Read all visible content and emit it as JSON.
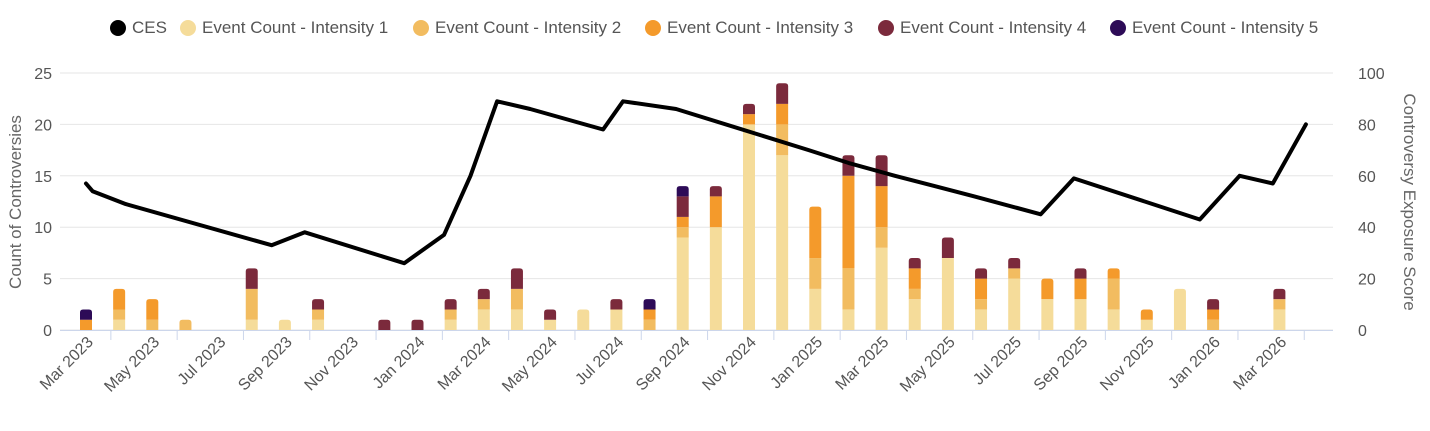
{
  "chart_data": {
    "type": "bar",
    "title": "",
    "stacked": true,
    "legend": [
      "CES",
      "Event Count - Intensity 1",
      "Event Count - Intensity 2",
      "Event Count - Intensity 3",
      "Event Count - Intensity 4",
      "Event Count - Intensity 5"
    ],
    "colors": {
      "CES": "#000000",
      "Event Count - Intensity 1": "#f5dc9a",
      "Event Count - Intensity 2": "#f2bc60",
      "Event Count - Intensity 3": "#f49a2b",
      "Event Count - Intensity 4": "#7b2a3c",
      "Event Count - Intensity 5": "#2d0b57"
    },
    "ylabel": "Count of Controversies",
    "y2label": "Controversy Exposure Score",
    "ylim": [
      0,
      25
    ],
    "y2lim": [
      0,
      100
    ],
    "yticks": [
      "0",
      "5",
      "10",
      "15",
      "20",
      "25"
    ],
    "y2ticks": [
      "0",
      "20",
      "40",
      "60",
      "80",
      "100"
    ],
    "categories": [
      "Mar 2023",
      "Apr 2023",
      "May 2023",
      "Jun 2023",
      "Jul 2023",
      "Aug 2023",
      "Sep 2023",
      "Oct 2023",
      "Nov 2023",
      "Dec 2023",
      "Jan 2024",
      "Feb 2024",
      "Mar 2024",
      "Apr 2024",
      "May 2024",
      "Jun 2024",
      "Jul 2024",
      "Aug 2024",
      "Sep 2024",
      "Oct 2024",
      "Nov 2024",
      "Dec 2024",
      "Jan 2025",
      "Feb 2025",
      "Mar 2025",
      "Apr 2025",
      "May 2025",
      "Jun 2025",
      "Jul 2025",
      "Aug 2025",
      "Sep 2025",
      "Oct 2025",
      "Nov 2025",
      "Dec 2025",
      "Jan 2026",
      "Feb 2026",
      "Mar 2026"
    ],
    "xtick_labels": [
      "Mar 2023",
      "May 2023",
      "Jul 2023",
      "Sep 2023",
      "Nov 2023",
      "Jan 2024",
      "Mar 2024",
      "May 2024",
      "Jul 2024",
      "Sep 2024",
      "Nov 2024",
      "Jan 2025",
      "Mar 2025",
      "May 2025",
      "Jul 2025",
      "Sep 2025",
      "Nov 2025",
      "Jan 2026",
      "Mar 2026"
    ],
    "series": [
      {
        "name": "Event Count - Intensity 1",
        "values": [
          0,
          1,
          0,
          0,
          0,
          1,
          1,
          1,
          0,
          0,
          0,
          1,
          2,
          2,
          1,
          2,
          2,
          0,
          9,
          10,
          20,
          17,
          4,
          2,
          8,
          3,
          7,
          2,
          5,
          3,
          3,
          2,
          1,
          4,
          0,
          0,
          2
        ]
      },
      {
        "name": "Event Count - Intensity 2",
        "values": [
          0,
          1,
          1,
          1,
          0,
          3,
          0,
          1,
          0,
          0,
          0,
          1,
          1,
          2,
          0,
          0,
          0,
          1,
          1,
          0,
          0,
          3,
          3,
          4,
          2,
          1,
          0,
          1,
          1,
          0,
          0,
          3,
          0,
          0,
          1,
          0,
          1
        ]
      },
      {
        "name": "Event Count - Intensity 3",
        "values": [
          1,
          2,
          2,
          0,
          0,
          0,
          0,
          0,
          0,
          0,
          0,
          0,
          0,
          0,
          0,
          0,
          0,
          1,
          1,
          3,
          1,
          2,
          5,
          9,
          4,
          2,
          0,
          2,
          0,
          2,
          2,
          1,
          1,
          0,
          1,
          0,
          0
        ]
      },
      {
        "name": "Event Count - Intensity 4",
        "values": [
          0,
          0,
          0,
          0,
          0,
          2,
          0,
          1,
          0,
          1,
          1,
          1,
          1,
          2,
          1,
          0,
          1,
          0,
          2,
          1,
          1,
          2,
          0,
          2,
          3,
          1,
          2,
          1,
          1,
          0,
          1,
          0,
          0,
          0,
          1,
          0,
          1
        ]
      },
      {
        "name": "Event Count - Intensity 5",
        "values": [
          1,
          0,
          0,
          0,
          0,
          0,
          0,
          0,
          0,
          0,
          0,
          0,
          0,
          0,
          0,
          0,
          0,
          1,
          1,
          0,
          0,
          0,
          0,
          0,
          0,
          0,
          0,
          0,
          0,
          0,
          0,
          0,
          0,
          0,
          0,
          0,
          0
        ]
      }
    ],
    "ces": {
      "name": "CES",
      "points": [
        [
          0,
          57
        ],
        [
          0.2,
          54
        ],
        [
          1.2,
          49
        ],
        [
          5.6,
          33
        ],
        [
          6.6,
          38
        ],
        [
          9.6,
          26
        ],
        [
          10.8,
          37
        ],
        [
          11.6,
          60
        ],
        [
          12.4,
          89
        ],
        [
          13.4,
          86
        ],
        [
          15.6,
          78
        ],
        [
          16.2,
          89
        ],
        [
          17.8,
          86
        ],
        [
          21.8,
          70
        ],
        [
          23,
          65
        ],
        [
          24.4,
          60
        ],
        [
          25.6,
          56
        ],
        [
          26.8,
          52
        ],
        [
          28.8,
          45
        ],
        [
          29.8,
          59
        ],
        [
          33.6,
          43
        ],
        [
          34.8,
          60
        ],
        [
          35.8,
          57
        ],
        [
          36.8,
          80
        ]
      ]
    }
  }
}
